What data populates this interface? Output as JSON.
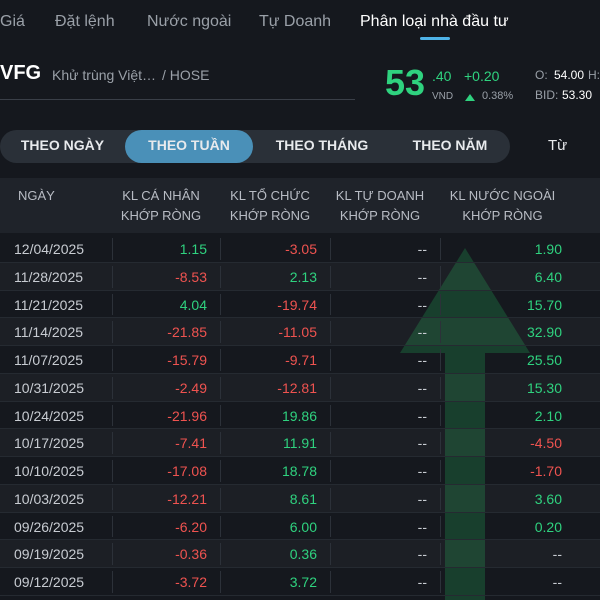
{
  "tabs": [
    "Giá",
    "Đặt lệnh",
    "Nước ngoài",
    "Tự Doanh",
    "Phân loại nhà đầu tư"
  ],
  "stock": {
    "symbol": "VFG",
    "name": "Khử trùng Việt…",
    "exchange": "/ HOSE",
    "price_int": "53",
    "price_dec": ".40",
    "currency": "VND",
    "change": "+0.20",
    "change_pct": "0.38%",
    "open_label": "O:",
    "open": "54.00",
    "high_label": "H:",
    "bid_label": "BID:",
    "bid": "53.30"
  },
  "periods": [
    "THEO NGÀY",
    "THEO TUẦN",
    "THEO THÁNG",
    "THEO NĂM"
  ],
  "from_label": "Từ",
  "table": {
    "headers": [
      [
        "NGÀY"
      ],
      [
        "KL CÁ NHÂN",
        "KHỚP RÒNG"
      ],
      [
        "KL TỔ CHỨC",
        "KHỚP RÒNG"
      ],
      [
        "KL TỰ DOANH",
        "KHỚP RÒNG"
      ],
      [
        "KL NƯỚC NGOÀI",
        "KHỚP RÒNG"
      ]
    ],
    "rows": [
      [
        "12/04/2025",
        "1.15",
        "-3.05",
        "--",
        "1.90"
      ],
      [
        "11/28/2025",
        "-8.53",
        "2.13",
        "--",
        "6.40"
      ],
      [
        "11/21/2025",
        "4.04",
        "-19.74",
        "--",
        "15.70"
      ],
      [
        "11/14/2025",
        "-21.85",
        "-11.05",
        "--",
        "32.90"
      ],
      [
        "11/07/2025",
        "-15.79",
        "-9.71",
        "--",
        "25.50"
      ],
      [
        "10/31/2025",
        "-2.49",
        "-12.81",
        "--",
        "15.30"
      ],
      [
        "10/24/2025",
        "-21.96",
        "19.86",
        "--",
        "2.10"
      ],
      [
        "10/17/2025",
        "-7.41",
        "11.91",
        "--",
        "-4.50"
      ],
      [
        "10/10/2025",
        "-17.08",
        "18.78",
        "--",
        "-1.70"
      ],
      [
        "10/03/2025",
        "-12.21",
        "8.61",
        "--",
        "3.60"
      ],
      [
        "09/26/2025",
        "-6.20",
        "6.00",
        "--",
        "0.20"
      ],
      [
        "09/19/2025",
        "-0.36",
        "0.36",
        "--",
        "--"
      ],
      [
        "09/12/2025",
        "-3.72",
        "3.72",
        "--",
        "--"
      ]
    ]
  }
}
